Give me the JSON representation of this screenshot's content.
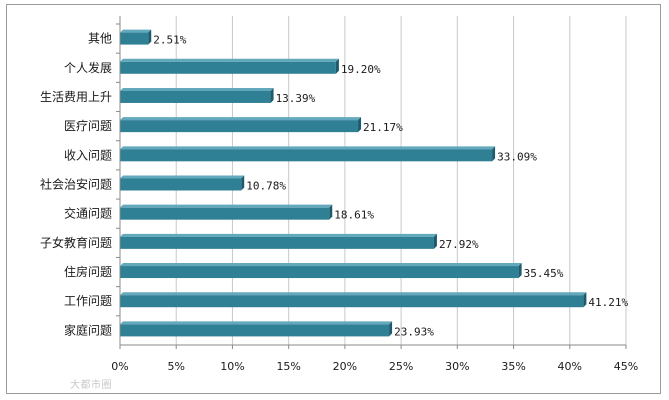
{
  "chart_data": {
    "type": "bar",
    "orientation": "horizontal",
    "categories": [
      "其他",
      "个人发展",
      "生活费用上升",
      "医疗问题",
      "收入问题",
      "社会治安问题",
      "交通问题",
      "子女教育问题",
      "住房问题",
      "工作问题",
      "家庭问题"
    ],
    "values": [
      2.51,
      19.2,
      13.39,
      21.17,
      33.09,
      10.78,
      18.61,
      27.92,
      35.45,
      41.21,
      23.93
    ],
    "data_labels": [
      "2.51%",
      "19.20%",
      "13.39%",
      "21.17%",
      "33.09%",
      "10.78%",
      "18.61%",
      "27.92%",
      "35.45%",
      "41.21%",
      "23.93%"
    ],
    "x_ticks": [
      0,
      5,
      10,
      15,
      20,
      25,
      30,
      35,
      40,
      45
    ],
    "x_tick_labels": [
      "0%",
      "5%",
      "10%",
      "15%",
      "20%",
      "25%",
      "30%",
      "35%",
      "40%",
      "45%"
    ],
    "xlim": [
      0,
      45
    ],
    "grid": "vertical",
    "bar_color": "#2f7f95",
    "bar_top_color": "#62a9bc",
    "bar_end_color": "#1d5a6c",
    "axis_color": "#8a8a8a",
    "grid_color": "#c8c8c8"
  },
  "watermark_text": "大都市圈"
}
